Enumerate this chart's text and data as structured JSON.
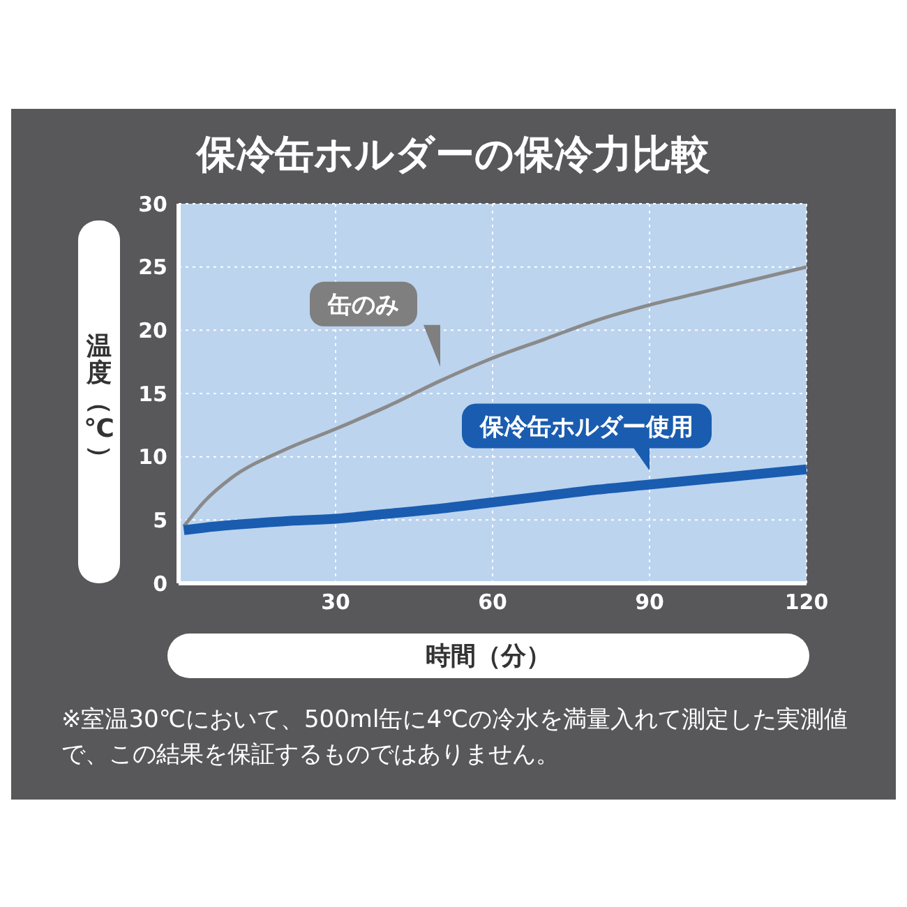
{
  "chart_data": {
    "type": "line",
    "title": "保冷缶ホルダーの保冷力比較",
    "xlabel": "時間（分）",
    "ylabel": "温度（℃）",
    "x": [
      1,
      5,
      10,
      20,
      30,
      40,
      50,
      60,
      70,
      80,
      90,
      100,
      110,
      120
    ],
    "series": [
      {
        "name": "缶のみ",
        "color": "#8a8a8a",
        "values": [
          4.5,
          6.5,
          8.3,
          10.5,
          12.2,
          14,
          16,
          17.8,
          19.3,
          20.8,
          22,
          23,
          24,
          25
        ]
      },
      {
        "name": "保冷缶ホルダー使用",
        "color": "#1a5cb0",
        "values": [
          4.2,
          4.4,
          4.6,
          4.9,
          5.1,
          5.5,
          5.9,
          6.4,
          6.9,
          7.4,
          7.8,
          8.2,
          8.6,
          9
        ]
      }
    ],
    "xlim": [
      0,
      120
    ],
    "xticks": [
      30,
      60,
      90,
      120
    ],
    "ylim": [
      0,
      30
    ],
    "yticks": [
      0,
      5,
      10,
      15,
      20,
      25,
      30
    ],
    "grid": true,
    "marker": "none",
    "line_style": "solid",
    "annotations": [
      "※室温30℃において、500ml缶に4℃の冷水を満量入れて測定した実測値で、この結果を保証するものではありません。"
    ]
  }
}
